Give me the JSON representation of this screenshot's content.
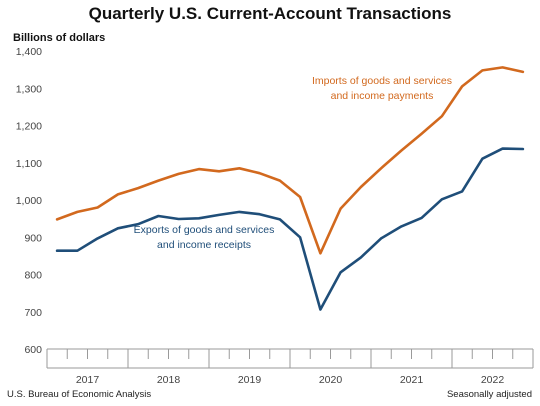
{
  "chart_data": {
    "type": "line",
    "title": "Quarterly U.S. Current-Account Transactions",
    "ylabel": "Billions of dollars",
    "ylim": [
      600,
      1400
    ],
    "yticks": [
      "600",
      "700",
      "800",
      "900",
      "1,000",
      "1,100",
      "1,200",
      "1,300",
      "1,400"
    ],
    "years": [
      "2017",
      "2018",
      "2019",
      "2020",
      "2021",
      "2022"
    ],
    "grid": false,
    "series": [
      {
        "name": "Imports of goods and services and income payments",
        "label_lines": [
          "Imports of goods and services",
          "and income payments"
        ],
        "color": "#d2691e",
        "values": [
          948,
          968,
          980,
          1015,
          1032,
          1052,
          1070,
          1083,
          1077,
          1085,
          1072,
          1052,
          1008,
          857,
          977,
          1035,
          1085,
          1133,
          1178,
          1225,
          1305,
          1348,
          1356,
          1344
        ]
      },
      {
        "name": "Exports of goods and services and income receipts",
        "label_lines": [
          "Exports of goods and services",
          "and income receipts"
        ],
        "color": "#1f4e79",
        "values": [
          864,
          864,
          897,
          924,
          935,
          957,
          949,
          951,
          960,
          968,
          962,
          948,
          900,
          706,
          806,
          846,
          897,
          929,
          952,
          1002,
          1023,
          1111,
          1138,
          1137
        ]
      }
    ]
  },
  "footer": {
    "source": "U.S. Bureau of Economic Analysis",
    "note": "Seasonally adjusted"
  }
}
